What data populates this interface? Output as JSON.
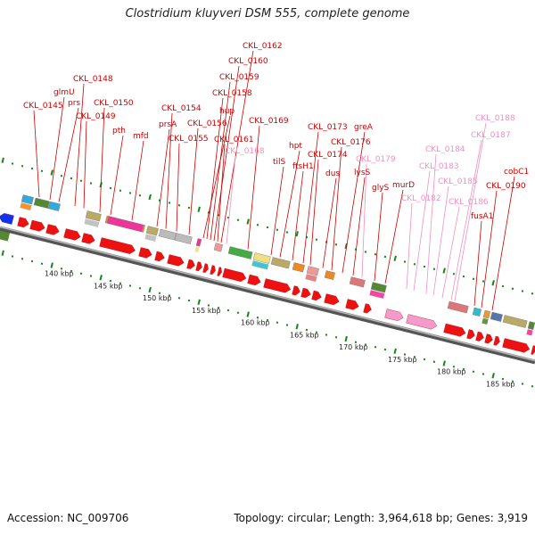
{
  "title": "Clostridium kluyveri DSM 555, complete genome",
  "footer": {
    "accession": "Accession: NC_009706",
    "summary": "Topology: circular; Length: 3,964,618 bp; Genes: 3,919"
  },
  "colors": {
    "label_red": "#cc0000",
    "label_pink": "#f090c0",
    "cds_red": "#ee1111",
    "cds_pink": "#f59acb",
    "cds_blue": "#1133ee",
    "backbone": "#888888",
    "tick_green": "#118811"
  },
  "scale": {
    "unit": "kbp",
    "labels": [
      "140 kbp",
      "145 kbp",
      "150 kbp",
      "155 kbp",
      "160 kbp",
      "165 kbp",
      "170 kbp",
      "175 kbp",
      "180 kbp",
      "185 kbp"
    ]
  },
  "gene_labels": [
    {
      "name": "CKL_0145",
      "tone": "red"
    },
    {
      "name": "glmU",
      "tone": "red"
    },
    {
      "name": "prs",
      "tone": "red"
    },
    {
      "name": "CKL_0148",
      "tone": "red"
    },
    {
      "name": "CKL_0149",
      "tone": "red"
    },
    {
      "name": "CKL_0150",
      "tone": "red"
    },
    {
      "name": "pth",
      "tone": "red"
    },
    {
      "name": "mfd",
      "tone": "red"
    },
    {
      "name": "prsA",
      "tone": "red"
    },
    {
      "name": "CKL_0154",
      "tone": "red"
    },
    {
      "name": "CKL_0155",
      "tone": "red"
    },
    {
      "name": "CKL_0156",
      "tone": "red"
    },
    {
      "name": "hup",
      "tone": "red"
    },
    {
      "name": "CKL_0158",
      "tone": "red"
    },
    {
      "name": "CKL_0159",
      "tone": "red"
    },
    {
      "name": "CKL_0160",
      "tone": "red"
    },
    {
      "name": "CKL_0161",
      "tone": "red"
    },
    {
      "name": "CKL_0162",
      "tone": "red"
    },
    {
      "name": "CKL_0168",
      "tone": "pink"
    },
    {
      "name": "CKL_0169",
      "tone": "red"
    },
    {
      "name": "tilS",
      "tone": "red"
    },
    {
      "name": "hpt",
      "tone": "red"
    },
    {
      "name": "ftsH1",
      "tone": "red"
    },
    {
      "name": "CKL_0173",
      "tone": "red"
    },
    {
      "name": "CKL_0174",
      "tone": "red"
    },
    {
      "name": "dus",
      "tone": "red"
    },
    {
      "name": "CKL_0176",
      "tone": "red"
    },
    {
      "name": "greA",
      "tone": "red"
    },
    {
      "name": "lysS",
      "tone": "red"
    },
    {
      "name": "CKL_0179",
      "tone": "pink"
    },
    {
      "name": "glyS",
      "tone": "red"
    },
    {
      "name": "murD",
      "tone": "red"
    },
    {
      "name": "CKL_0182",
      "tone": "pink"
    },
    {
      "name": "CKL_0183",
      "tone": "pink"
    },
    {
      "name": "CKL_0184",
      "tone": "pink"
    },
    {
      "name": "CKL_0185",
      "tone": "pink"
    },
    {
      "name": "CKL_0186",
      "tone": "pink"
    },
    {
      "name": "CKL_0187",
      "tone": "pink"
    },
    {
      "name": "CKL_0188",
      "tone": "pink"
    },
    {
      "name": "fusA1",
      "tone": "red"
    },
    {
      "name": "CKL_0190",
      "tone": "red"
    },
    {
      "name": "cobC1",
      "tone": "red"
    }
  ]
}
